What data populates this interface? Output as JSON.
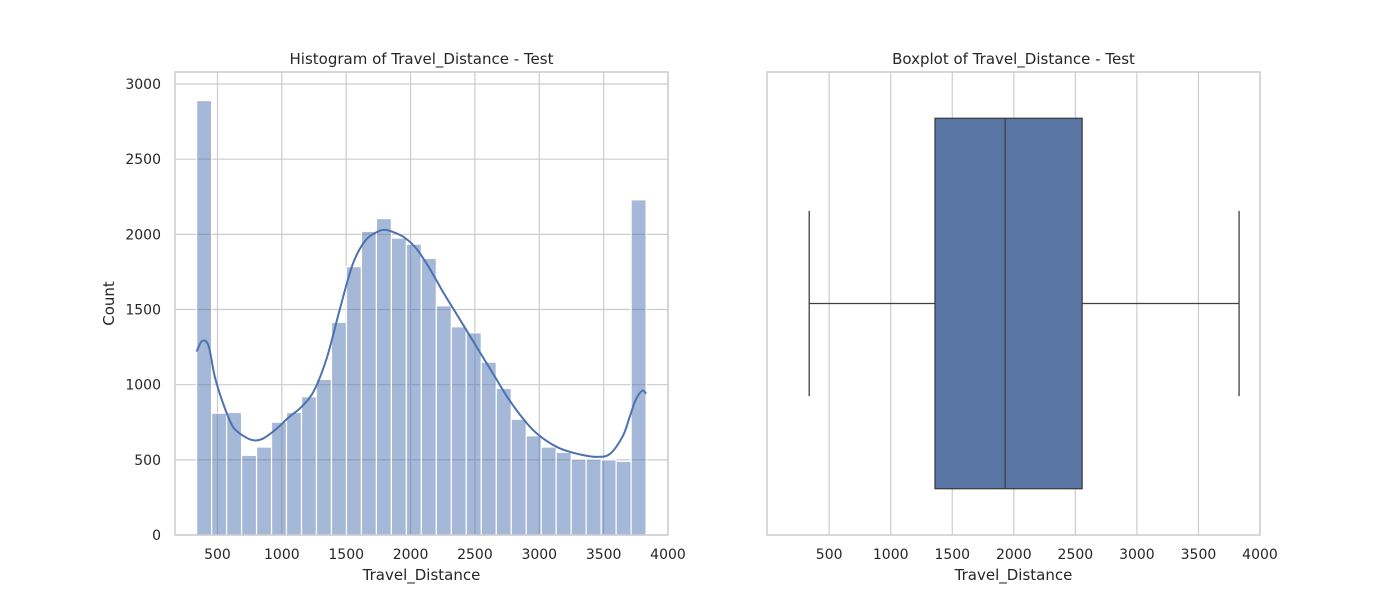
{
  "chart_data": [
    {
      "type": "histogram",
      "title": "Histogram of Travel_Distance - Test",
      "xlabel": "Travel_Distance",
      "ylabel": "Count",
      "xlim": [
        170,
        4000
      ],
      "ylim": [
        0,
        3080
      ],
      "xticks": [
        500,
        1000,
        1500,
        2000,
        2500,
        3000,
        3500,
        4000
      ],
      "yticks": [
        0,
        500,
        1000,
        1500,
        2000,
        2500,
        3000
      ],
      "grid": true,
      "bar_color": "#4c72b0",
      "bar_alpha": 0.5,
      "kde_color": "#4c72b0",
      "bins": {
        "start": 338,
        "end": 3830,
        "counts": [
          2890,
          810,
          815,
          530,
          585,
          750,
          815,
          920,
          1035,
          1415,
          1785,
          2020,
          2105,
          1975,
          1935,
          1840,
          1525,
          1385,
          1345,
          1150,
          975,
          770,
          660,
          585,
          550,
          505,
          505,
          500,
          490,
          2230
        ]
      },
      "kde": {
        "x": [
          338,
          380,
          430,
          480,
          550,
          620,
          700,
          780,
          850,
          950,
          1050,
          1150,
          1250,
          1350,
          1450,
          1550,
          1650,
          1750,
          1800,
          1850,
          1950,
          2050,
          2150,
          2250,
          2350,
          2450,
          2550,
          2650,
          2750,
          2850,
          2950,
          3050,
          3150,
          3250,
          3350,
          3450,
          3550,
          3650,
          3700,
          3750,
          3800,
          3830
        ],
        "y": [
          1220,
          1290,
          1260,
          1050,
          860,
          720,
          660,
          630,
          640,
          700,
          780,
          850,
          960,
          1180,
          1500,
          1800,
          1960,
          2020,
          2030,
          2020,
          1980,
          1900,
          1770,
          1620,
          1480,
          1340,
          1200,
          1060,
          920,
          800,
          700,
          630,
          580,
          550,
          530,
          520,
          540,
          660,
          780,
          900,
          960,
          940
        ]
      }
    },
    {
      "type": "boxplot",
      "title": "Boxplot of Travel_Distance - Test",
      "xlabel": "Travel_Distance",
      "xlim": [
        -5,
        4000
      ],
      "xticks": [
        500,
        1000,
        1500,
        2000,
        2500,
        3000,
        3500,
        4000
      ],
      "grid": true,
      "box_color": "#5975a4",
      "line_color": "#3f3f3f",
      "stats": {
        "whisker_low": 338,
        "q1": 1360,
        "median": 1930,
        "q3": 2555,
        "whisker_high": 3830
      }
    }
  ]
}
